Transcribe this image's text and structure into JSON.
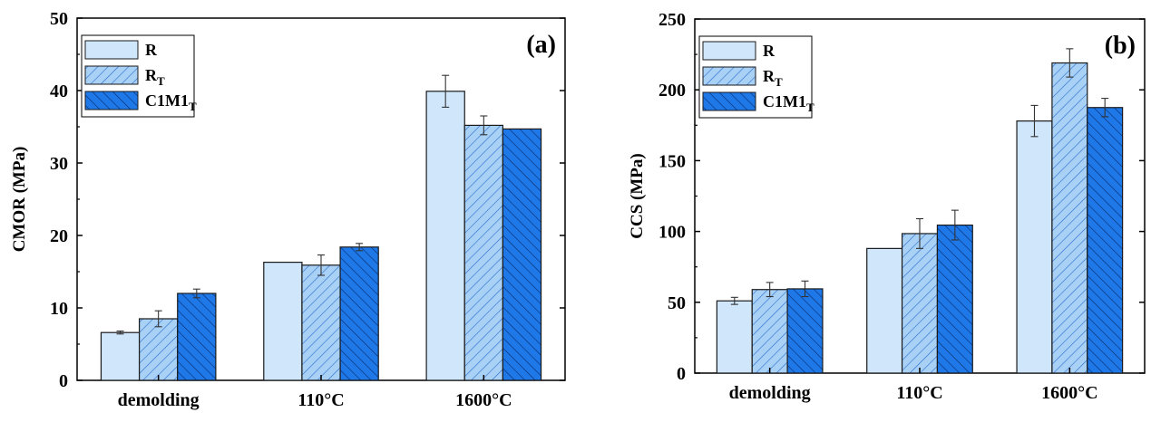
{
  "legend_labels": [
    {
      "base": "R",
      "sub": ""
    },
    {
      "base": "R",
      "sub": "T"
    },
    {
      "base": "C1M1",
      "sub": "T"
    }
  ],
  "colors": {
    "fill": "#cfe6fb",
    "fill_rt": "#a9d0f5",
    "fill_c1m1t": "#1e78e8",
    "hatch_rt": "#2a6fd0",
    "hatch_c1m1t": "#0a2a6a",
    "stroke": "#1a1a1a"
  },
  "chart_data": [
    {
      "type": "bar",
      "panel_label": "(a)",
      "ylabel": "CMOR (MPa)",
      "xlabel": "",
      "ylim": [
        0,
        50
      ],
      "yticks": [
        0,
        10,
        20,
        30,
        40,
        50
      ],
      "categories": [
        "demolding",
        "110°C",
        "1600°C"
      ],
      "legend_position": "top-left",
      "series": [
        {
          "name": "R",
          "values": [
            6.6,
            16.3,
            39.9
          ],
          "errors": [
            0.2,
            0,
            2.2
          ]
        },
        {
          "name": "RT",
          "values": [
            8.5,
            15.9,
            35.2
          ],
          "errors": [
            1.1,
            1.4,
            1.3
          ]
        },
        {
          "name": "C1M1T",
          "values": [
            12.0,
            18.4,
            34.7
          ],
          "errors": [
            0.6,
            0.5,
            0
          ]
        }
      ]
    },
    {
      "type": "bar",
      "panel_label": "(b)",
      "ylabel": "CCS (MPa)",
      "xlabel": "",
      "ylim": [
        0,
        250
      ],
      "yticks": [
        0,
        50,
        100,
        150,
        200,
        250
      ],
      "categories": [
        "demolding",
        "110°C",
        "1600°C"
      ],
      "legend_position": "top-left",
      "series": [
        {
          "name": "R",
          "values": [
            51,
            88,
            178
          ],
          "errors": [
            2.5,
            0,
            11
          ]
        },
        {
          "name": "RT",
          "values": [
            59,
            98.5,
            219
          ],
          "errors": [
            5,
            10.5,
            10
          ]
        },
        {
          "name": "C1M1T",
          "values": [
            59.5,
            104.5,
            187.5
          ],
          "errors": [
            5.5,
            10.5,
            6.5
          ]
        }
      ]
    }
  ]
}
